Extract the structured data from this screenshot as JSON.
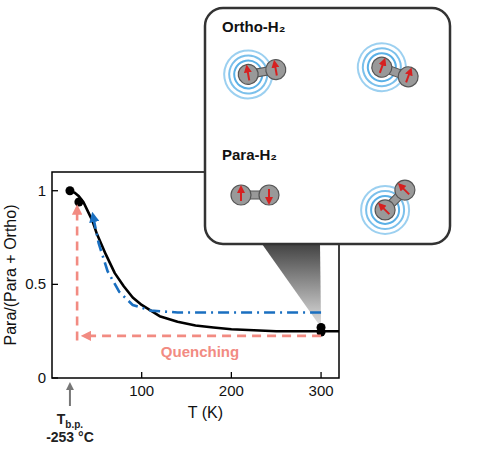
{
  "chart_data": {
    "type": "line",
    "x_label": "T (K)",
    "y_label": "Para/(Para + Ortho)",
    "xlim": [
      0,
      320
    ],
    "ylim": [
      0,
      1.1
    ],
    "xticks": [
      100,
      200,
      300
    ],
    "yticks": [
      0,
      0.5,
      1
    ],
    "grid": false,
    "series": [
      {
        "type": "line",
        "color": "#000000",
        "line_style": "solid",
        "x": [
          20,
          25,
          30,
          35,
          40,
          45,
          50,
          60,
          70,
          80,
          90,
          100,
          120,
          140,
          160,
          180,
          200,
          250,
          300,
          320
        ],
        "values": [
          1.0,
          0.99,
          0.97,
          0.94,
          0.89,
          0.84,
          0.77,
          0.66,
          0.56,
          0.49,
          0.43,
          0.39,
          0.33,
          0.3,
          0.28,
          0.27,
          0.26,
          0.25,
          0.25,
          0.25
        ]
      },
      {
        "type": "scatter",
        "color": "#000000",
        "marker": "circle",
        "x": [
          20,
          30,
          300,
          300
        ],
        "values": [
          1.0,
          0.94,
          0.27,
          0.245
        ]
      },
      {
        "type": "line",
        "color": "#1a6fc0",
        "line_style": "dashdot",
        "marker": "arrow",
        "x": [
          300,
          140,
          110,
          90,
          75,
          62,
          52,
          46
        ],
        "values": [
          0.35,
          0.35,
          0.36,
          0.39,
          0.46,
          0.57,
          0.72,
          0.86
        ]
      },
      {
        "type": "line",
        "color": "#f28b82",
        "line_style": "dashed",
        "marker": "arrow",
        "x": [
          300,
          38
        ],
        "values": [
          0.225,
          0.225
        ]
      },
      {
        "type": "line",
        "color": "#f28b82",
        "line_style": "dashed",
        "marker": "arrow",
        "x": [
          28,
          28
        ],
        "values": [
          0.2,
          0.9
        ]
      }
    ],
    "annotations": [
      {
        "text": "Quenching",
        "color": "#f28b82"
      }
    ],
    "boiling_point": {
      "x": 20,
      "label": "T",
      "label_sub": "b.p.",
      "note": "-253 °C"
    },
    "inset": {
      "ortho_label": "Ortho-H₂",
      "para_label": "Para-H₂"
    }
  }
}
